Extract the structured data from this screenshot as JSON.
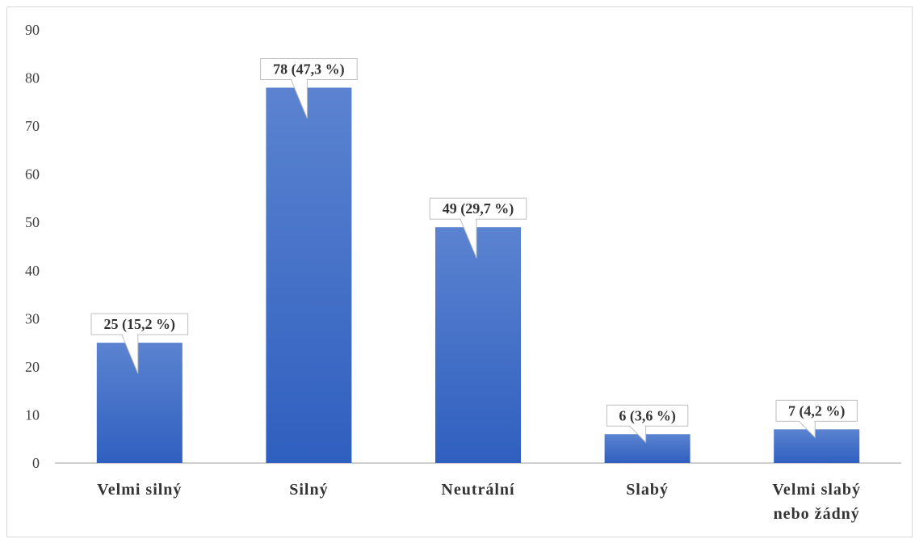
{
  "chart_data": {
    "type": "bar",
    "categories": [
      [
        "Velmi silný"
      ],
      [
        "Silný"
      ],
      [
        "Neutrální"
      ],
      [
        "Slabý"
      ],
      [
        "Velmi slabý",
        "nebo žádný"
      ]
    ],
    "values": [
      25,
      78,
      49,
      6,
      7
    ],
    "data_labels": [
      "25 (15,2 %)",
      "78 (47,3 %)",
      "49 (29,7 %)",
      "6 (3,6 %)",
      "7 (4,2 %)"
    ],
    "y_ticks": [
      "0",
      "10",
      "20",
      "30",
      "40",
      "50",
      "60",
      "70",
      "80",
      "90"
    ],
    "ylim": [
      0,
      90
    ],
    "title": "",
    "xlabel": "",
    "ylabel": "",
    "grid": false,
    "legend": "none",
    "colors": {
      "bar_top": "#5b83d0",
      "bar_bottom": "#2f5fbf",
      "callout_border": "#bfbfbf",
      "axis": "#bfbfbf"
    }
  }
}
